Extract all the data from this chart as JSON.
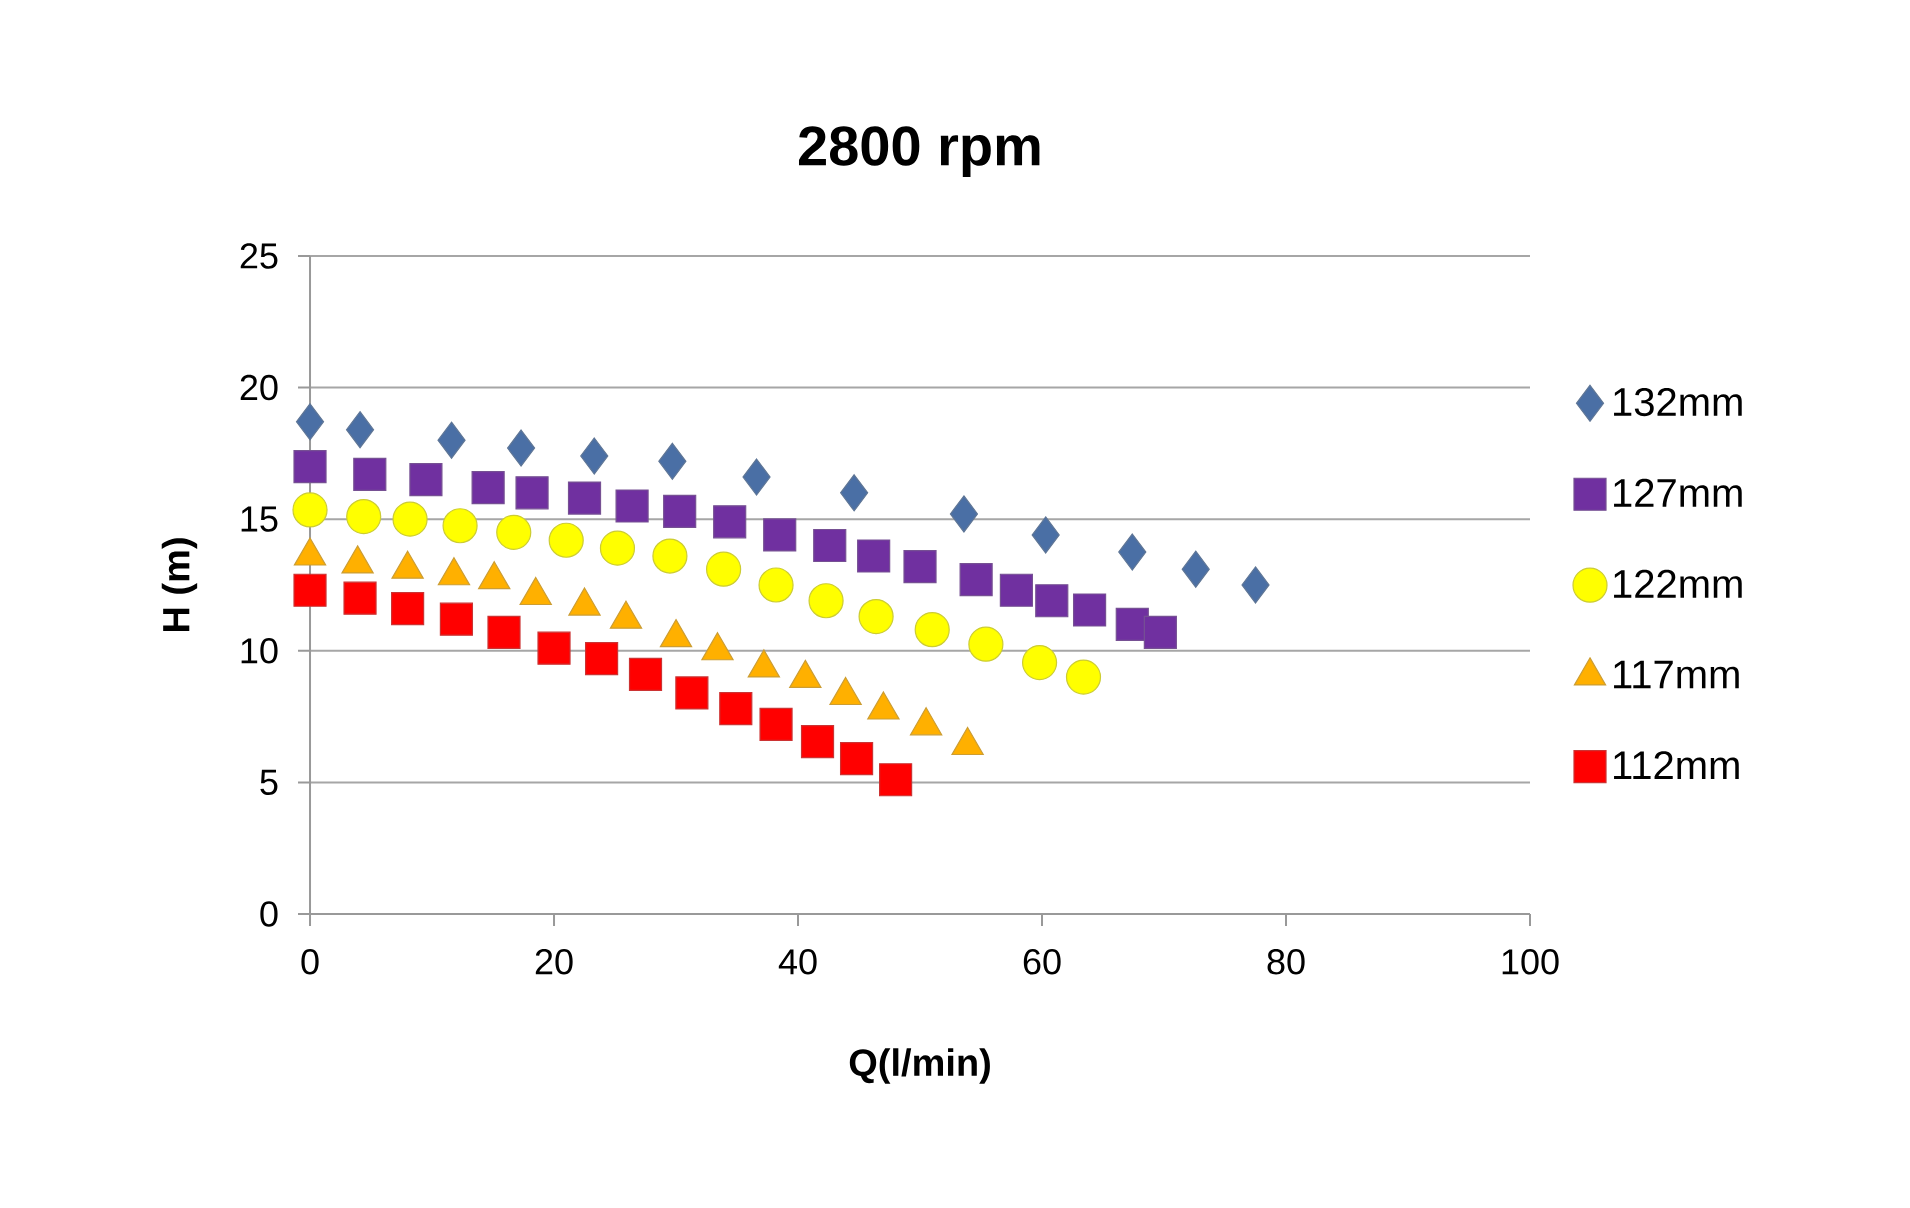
{
  "chart_data": {
    "type": "scatter",
    "title": "2800 rpm",
    "xlabel": "Q(l/min)",
    "ylabel": "H (m)",
    "xlim": [
      0,
      100
    ],
    "xticks": [
      0,
      20,
      40,
      60,
      80,
      100
    ],
    "ylim": [
      0,
      25
    ],
    "yticks": [
      0,
      5,
      10,
      15,
      20,
      25
    ],
    "grid": "y",
    "legend": "right",
    "series": [
      {
        "name": "132mm",
        "color": "#4a6fa5",
        "marker": "diamond",
        "x": [
          0,
          4.1,
          11.6,
          17.3,
          23.3,
          29.7,
          36.6,
          44.6,
          53.6,
          60.3,
          67.4,
          72.6,
          77.5
        ],
        "values": [
          18.7,
          18.4,
          18.0,
          17.7,
          17.4,
          17.2,
          16.6,
          16.0,
          15.2,
          14.4,
          13.75,
          13.1,
          12.5
        ]
      },
      {
        "name": "127mm",
        "color": "#7030a0",
        "marker": "square",
        "x": [
          0,
          4.9,
          9.5,
          14.6,
          18.2,
          22.5,
          26.4,
          30.3,
          34.4,
          38.5,
          42.6,
          46.2,
          50,
          54.6,
          57.9,
          60.8,
          63.9,
          67.4,
          69.7
        ],
        "values": [
          17.0,
          16.7,
          16.5,
          16.2,
          16.0,
          15.8,
          15.5,
          15.3,
          14.9,
          14.4,
          14.0,
          13.6,
          13.2,
          12.7,
          12.3,
          11.9,
          11.55,
          11.0,
          10.7
        ]
      },
      {
        "name": "122mm",
        "color": "#ffff00",
        "marker": "circle",
        "x": [
          0,
          4.4,
          8.2,
          12.3,
          16.7,
          21,
          25.2,
          29.5,
          33.9,
          38.2,
          42.3,
          46.4,
          51,
          55.4,
          59.8,
          63.4
        ],
        "values": [
          15.35,
          15.1,
          15.0,
          14.75,
          14.5,
          14.2,
          13.9,
          13.6,
          13.1,
          12.5,
          11.9,
          11.3,
          10.8,
          10.25,
          9.55,
          9.0
        ]
      },
      {
        "name": "117mm",
        "color": "#ffb000",
        "marker": "triangle",
        "x": [
          0,
          3.9,
          8.0,
          11.8,
          15.1,
          18.5,
          22.5,
          25.9,
          30,
          33.4,
          37.2,
          40.6,
          43.9,
          47,
          50.5,
          53.9
        ],
        "values": [
          13.6,
          13.3,
          13.1,
          12.85,
          12.7,
          12.1,
          11.7,
          11.2,
          10.5,
          10.0,
          9.35,
          8.95,
          8.3,
          7.75,
          7.15,
          6.4
        ]
      },
      {
        "name": "112mm",
        "color": "#ff0000",
        "marker": "square",
        "x": [
          0,
          4.1,
          8.0,
          12.0,
          15.9,
          20,
          23.9,
          27.5,
          31.3,
          34.9,
          38.2,
          41.6,
          44.8,
          48.0
        ],
        "values": [
          12.3,
          12.0,
          11.6,
          11.2,
          10.7,
          10.1,
          9.7,
          9.1,
          8.4,
          7.8,
          7.2,
          6.55,
          5.9,
          5.1
        ]
      }
    ]
  }
}
